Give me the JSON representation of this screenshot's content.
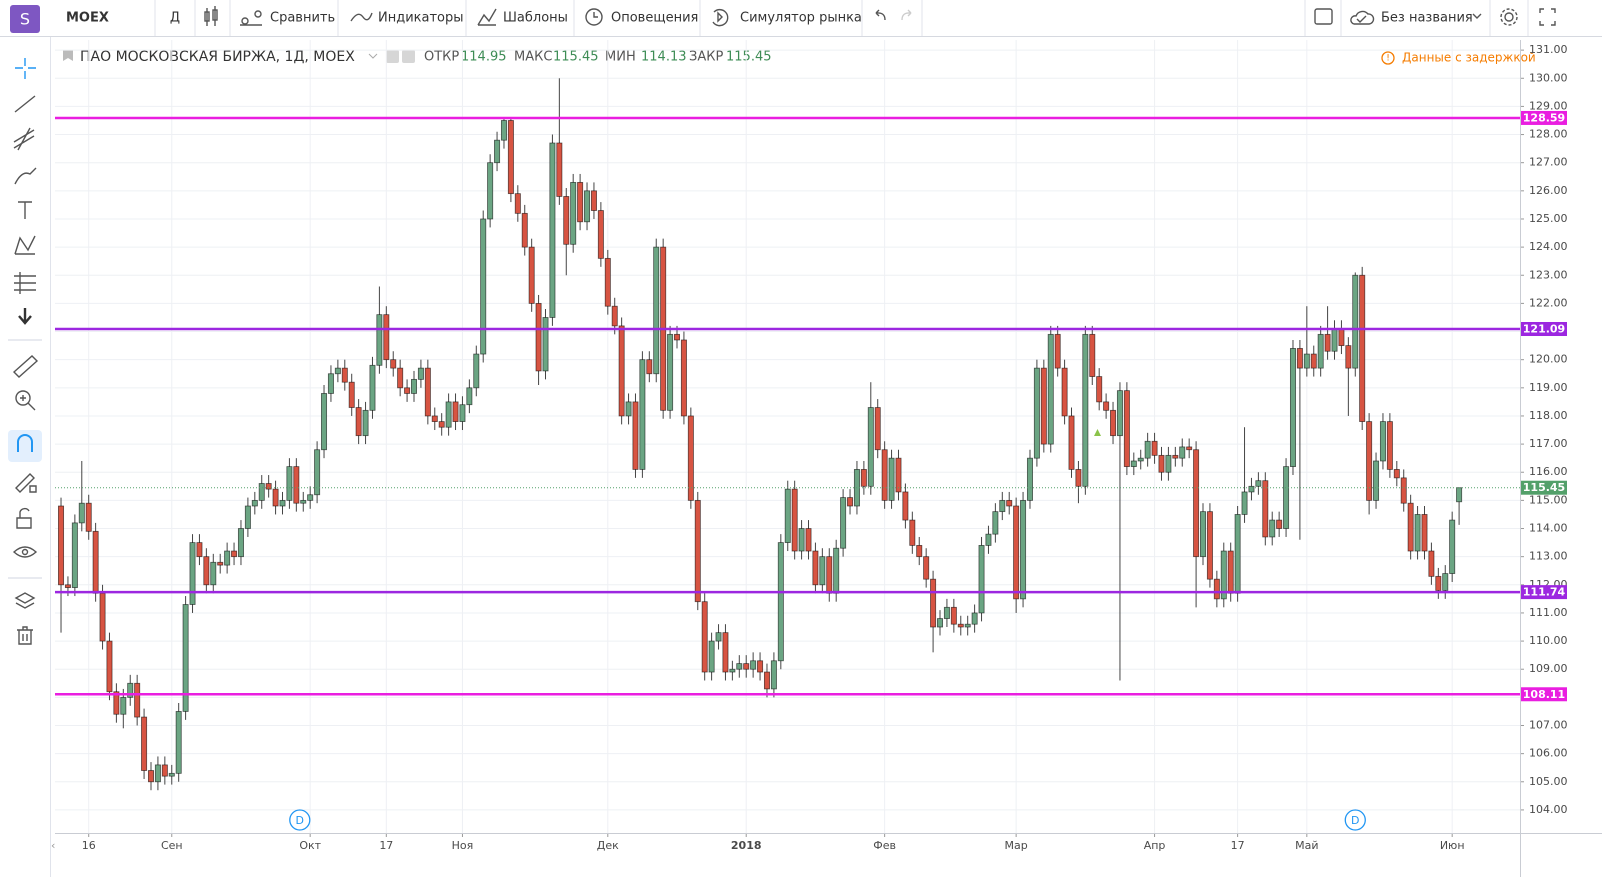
{
  "toolbar": {
    "logo": "S",
    "symbol": "MOEX",
    "interval": "Д",
    "compare": "Сравнить",
    "indicators": "Индикаторы",
    "templates": "Шаблоны",
    "alerts": "Оповещения",
    "replay": "Симулятор рынка",
    "layout": "Без названия"
  },
  "chart_data": {
    "type": "candlestick",
    "title": "ПАО МОСКОВСКАЯ БИРЖА, 1Д, MOEX",
    "legend": {
      "open": "ОТКР",
      "high": "МАКС",
      "low": "МИН",
      "close": "ЗАКР"
    },
    "notice": "Данные с задержкой",
    "up_color": "#6ba583",
    "down_color": "#d75442",
    "open": [
      114.8,
      112.0,
      111.9,
      114.2,
      114.9,
      113.9,
      111.7,
      110.0,
      108.2,
      107.4,
      108.0,
      108.5,
      107.3,
      105.4,
      105.0,
      105.6,
      105.2,
      105.3,
      107.5,
      111.3,
      113.5,
      113.0,
      112.0,
      112.8,
      112.7,
      113.2,
      113.0,
      114.0,
      114.8,
      115.0,
      115.6,
      115.4,
      114.8,
      115.0,
      116.2,
      114.9,
      115.0,
      115.2,
      116.8,
      118.8,
      119.5,
      119.7,
      119.2,
      118.3,
      117.3,
      118.2,
      119.8,
      121.6,
      120.0,
      119.7,
      119.0,
      118.8,
      119.3,
      119.7,
      118.0,
      117.8,
      117.6,
      118.5,
      117.8,
      118.4,
      119.0,
      120.2,
      125.0,
      127.0,
      127.8,
      128.5,
      125.9,
      125.2,
      124.0,
      122.0,
      119.6,
      121.5,
      127.7,
      125.8,
      124.1,
      126.3,
      124.9,
      126.0,
      125.3,
      123.6,
      121.9,
      121.2,
      118.0,
      118.5,
      116.1,
      120.0,
      119.5,
      124.0,
      118.2,
      120.9,
      120.7,
      118.0,
      115.0,
      111.4,
      108.9,
      110.0,
      110.3,
      108.9,
      109.0,
      109.2,
      109.0,
      109.3,
      108.9,
      108.3,
      109.3,
      113.5,
      115.4,
      113.2,
      114.0,
      113.2,
      112.0,
      113.0,
      111.7,
      113.3,
      115.1,
      114.8,
      116.1,
      115.5,
      118.3,
      116.8,
      115.0,
      116.5,
      115.3,
      114.3,
      113.4,
      113.0,
      112.2,
      110.5,
      110.8,
      111.2,
      110.6,
      110.5,
      110.6,
      111.0,
      113.4,
      113.8,
      114.6,
      115.0,
      114.8,
      111.5,
      115.0,
      116.5,
      119.7,
      117.0,
      120.9,
      119.7,
      118.0,
      116.1,
      115.5,
      120.9,
      119.4,
      118.5,
      118.2,
      117.3,
      118.9,
      116.2,
      116.4,
      116.5,
      117.1,
      116.6,
      116.0,
      116.6,
      116.5,
      116.9,
      116.8,
      113.0,
      114.6,
      112.2,
      111.5,
      113.2,
      111.7,
      114.5,
      115.3,
      115.5,
      115.7,
      113.7,
      114.3,
      114.0,
      116.2,
      120.4,
      119.7,
      120.2,
      119.7,
      120.9,
      120.3,
      121.1,
      120.5,
      119.7,
      123.0,
      117.8,
      115.0,
      116.4,
      117.8,
      116.1,
      115.8,
      114.9,
      113.2,
      114.5,
      113.2,
      112.3,
      111.8,
      112.4,
      114.95
    ],
    "high": [
      115.1,
      112.3,
      114.5,
      116.4,
      115.2,
      114.2,
      112.0,
      110.3,
      108.5,
      108.3,
      108.8,
      108.8,
      107.6,
      105.7,
      105.9,
      105.9,
      105.6,
      107.8,
      111.6,
      113.8,
      113.8,
      113.3,
      113.1,
      113.1,
      113.5,
      113.5,
      114.3,
      115.1,
      115.3,
      115.9,
      115.9,
      115.7,
      115.3,
      116.5,
      116.5,
      115.3,
      115.5,
      117.1,
      119.1,
      119.8,
      120.0,
      120.0,
      119.5,
      118.6,
      118.5,
      120.1,
      122.6,
      121.9,
      120.3,
      120.0,
      119.3,
      119.6,
      120.0,
      120.0,
      118.3,
      118.1,
      118.8,
      118.8,
      118.7,
      119.3,
      120.5,
      125.3,
      127.3,
      128.1,
      128.6,
      128.6,
      126.2,
      125.5,
      124.3,
      122.3,
      121.8,
      128.0,
      130.0,
      126.1,
      126.6,
      126.6,
      126.3,
      126.3,
      125.6,
      123.9,
      122.2,
      121.5,
      118.8,
      118.8,
      120.3,
      120.3,
      124.3,
      124.3,
      121.2,
      121.2,
      121.0,
      118.3,
      115.3,
      111.7,
      110.3,
      110.6,
      110.6,
      109.3,
      109.5,
      109.5,
      109.6,
      109.6,
      109.2,
      109.6,
      113.8,
      115.7,
      115.7,
      114.3,
      114.3,
      113.5,
      113.3,
      113.3,
      113.6,
      115.4,
      115.4,
      116.4,
      116.4,
      119.2,
      118.6,
      117.1,
      116.8,
      116.8,
      115.6,
      114.6,
      113.7,
      113.3,
      112.5,
      111.1,
      111.5,
      111.5,
      110.9,
      110.9,
      111.3,
      113.7,
      114.1,
      114.9,
      115.3,
      115.3,
      115.1,
      115.3,
      116.8,
      120.0,
      120.0,
      121.2,
      121.2,
      120.0,
      118.3,
      116.4,
      121.2,
      121.2,
      119.7,
      118.8,
      118.5,
      119.2,
      119.2,
      116.7,
      116.8,
      117.4,
      117.4,
      116.9,
      116.9,
      116.9,
      117.2,
      117.2,
      117.1,
      114.9,
      114.9,
      112.5,
      113.5,
      113.5,
      114.8,
      117.6,
      115.8,
      116.0,
      116.0,
      114.6,
      114.6,
      116.5,
      120.7,
      120.7,
      121.9,
      120.5,
      121.2,
      121.9,
      121.4,
      121.4,
      120.8,
      123.1,
      123.3,
      118.1,
      116.7,
      118.1,
      118.1,
      116.4,
      116.1,
      115.2,
      114.8,
      114.8,
      113.5,
      112.6,
      112.7,
      114.6,
      115.45
    ],
    "low": [
      110.3,
      111.6,
      111.6,
      113.9,
      113.6,
      111.4,
      109.7,
      107.9,
      107.1,
      106.9,
      107.7,
      107.0,
      105.1,
      104.7,
      104.7,
      104.9,
      104.9,
      105.0,
      107.2,
      111.0,
      112.7,
      111.7,
      111.7,
      112.4,
      112.4,
      112.7,
      112.7,
      113.7,
      114.5,
      114.7,
      115.1,
      114.5,
      114.5,
      114.7,
      114.6,
      114.6,
      114.7,
      114.9,
      116.5,
      118.5,
      119.2,
      118.9,
      118.0,
      117.0,
      117.0,
      117.9,
      119.5,
      119.7,
      119.4,
      118.7,
      118.5,
      118.5,
      119.0,
      117.7,
      117.5,
      117.3,
      117.3,
      117.5,
      117.5,
      118.1,
      118.7,
      119.9,
      124.7,
      126.7,
      127.5,
      125.6,
      124.9,
      123.7,
      121.7,
      119.1,
      119.3,
      121.2,
      125.5,
      123.0,
      123.8,
      124.6,
      124.6,
      125.0,
      123.3,
      121.6,
      120.9,
      117.7,
      117.7,
      115.8,
      115.8,
      119.2,
      119.2,
      117.9,
      117.9,
      120.4,
      117.7,
      114.7,
      111.1,
      108.6,
      108.6,
      109.7,
      108.6,
      108.6,
      108.7,
      108.7,
      108.7,
      108.6,
      108.0,
      108.0,
      109.0,
      113.2,
      112.9,
      112.9,
      112.9,
      111.7,
      111.7,
      111.4,
      111.4,
      113.0,
      114.5,
      114.5,
      115.2,
      115.2,
      116.5,
      114.7,
      114.7,
      115.0,
      114.0,
      113.1,
      112.7,
      111.9,
      109.6,
      110.2,
      110.5,
      110.3,
      110.2,
      110.2,
      110.3,
      110.7,
      113.1,
      113.5,
      114.3,
      114.5,
      111.0,
      111.2,
      114.7,
      116.2,
      116.7,
      116.7,
      119.4,
      117.7,
      115.8,
      114.9,
      115.2,
      119.1,
      118.2,
      117.9,
      117.0,
      108.6,
      115.9,
      115.9,
      116.1,
      116.2,
      116.3,
      115.7,
      115.7,
      116.2,
      116.2,
      116.5,
      111.2,
      112.7,
      111.9,
      111.2,
      111.2,
      111.4,
      111.4,
      114.2,
      115.0,
      115.2,
      113.4,
      113.4,
      113.7,
      113.7,
      115.9,
      113.6,
      119.4,
      119.4,
      119.4,
      120.0,
      120.0,
      120.2,
      118.0,
      119.4,
      117.5,
      114.5,
      114.7,
      116.1,
      115.8,
      115.5,
      114.6,
      112.9,
      112.9,
      112.9,
      112.0,
      111.5,
      111.5,
      112.1,
      114.13
    ],
    "close": [
      112.0,
      111.9,
      114.2,
      114.9,
      113.9,
      111.7,
      110.0,
      108.2,
      107.4,
      108.0,
      108.5,
      107.3,
      105.4,
      105.0,
      105.6,
      105.2,
      105.3,
      107.5,
      111.3,
      113.5,
      113.0,
      112.0,
      112.8,
      112.7,
      113.2,
      113.0,
      114.0,
      114.8,
      115.0,
      115.6,
      115.4,
      114.8,
      115.0,
      116.2,
      114.9,
      115.0,
      115.2,
      116.8,
      118.8,
      119.5,
      119.7,
      119.2,
      118.3,
      117.3,
      118.2,
      119.8,
      121.6,
      120.0,
      119.7,
      119.0,
      118.8,
      119.3,
      119.7,
      118.0,
      117.8,
      117.6,
      118.5,
      117.8,
      118.4,
      119.0,
      120.2,
      125.0,
      127.0,
      127.8,
      128.5,
      125.9,
      125.2,
      124.0,
      122.0,
      119.6,
      121.5,
      127.7,
      125.8,
      124.1,
      126.3,
      124.9,
      126.0,
      125.3,
      123.6,
      121.9,
      121.2,
      118.0,
      118.5,
      116.1,
      120.0,
      119.5,
      124.0,
      118.2,
      120.9,
      120.7,
      118.0,
      115.0,
      111.4,
      108.9,
      110.0,
      110.3,
      108.9,
      109.0,
      109.2,
      109.0,
      109.3,
      108.9,
      108.3,
      109.3,
      113.5,
      115.4,
      113.2,
      114.0,
      113.2,
      112.0,
      113.0,
      111.7,
      113.3,
      115.1,
      114.8,
      116.1,
      115.5,
      118.3,
      116.8,
      115.0,
      116.5,
      115.3,
      114.3,
      113.4,
      113.0,
      112.2,
      110.5,
      110.8,
      111.2,
      110.6,
      110.5,
      110.6,
      111.0,
      113.4,
      113.8,
      114.6,
      115.0,
      114.8,
      111.5,
      115.0,
      116.5,
      119.7,
      117.0,
      120.9,
      119.7,
      118.0,
      116.1,
      115.5,
      120.9,
      119.4,
      118.5,
      118.2,
      117.3,
      118.9,
      116.2,
      116.4,
      116.5,
      117.1,
      116.6,
      116.0,
      116.6,
      116.5,
      116.9,
      116.8,
      113.0,
      114.6,
      112.2,
      111.5,
      113.2,
      111.7,
      114.5,
      115.3,
      115.5,
      115.7,
      113.7,
      114.3,
      114.0,
      116.2,
      120.4,
      119.7,
      120.2,
      119.7,
      120.9,
      120.3,
      121.1,
      120.5,
      119.7,
      123.0,
      117.8,
      115.0,
      116.4,
      117.8,
      116.1,
      115.8,
      114.9,
      113.2,
      114.5,
      113.2,
      112.3,
      111.8,
      112.4,
      114.3,
      115.45
    ],
    "last_color": "#53a06a",
    "xlim": [
      -0.87,
      210.8
    ],
    "xticks": [
      {
        "value": 4,
        "label": "16"
      },
      {
        "value": 16,
        "label": "Сен"
      },
      {
        "value": 36,
        "label": "Окт"
      },
      {
        "value": 47,
        "label": "17"
      },
      {
        "value": 58,
        "label": "Ноя"
      },
      {
        "value": 79,
        "label": "Дек"
      },
      {
        "value": 99,
        "label": "2018"
      },
      {
        "value": 119,
        "label": "Фев"
      },
      {
        "value": 138,
        "label": "Мар"
      },
      {
        "value": 158,
        "label": "Апр"
      },
      {
        "value": 170,
        "label": "17"
      },
      {
        "value": 180,
        "label": "Май"
      },
      {
        "value": 201,
        "label": "Июн"
      }
    ],
    "ylim": [
      103.18,
      131.36
    ],
    "yticks": [
      {
        "value": 104,
        "label": "104.00"
      },
      {
        "value": 105,
        "label": "105.00"
      },
      {
        "value": 106,
        "label": "106.00"
      },
      {
        "value": 107,
        "label": "107.00"
      },
      {
        "value": 108,
        "label": "108.00"
      },
      {
        "value": 109,
        "label": "109.00"
      },
      {
        "value": 110,
        "label": "110.00"
      },
      {
        "value": 111,
        "label": "111.00"
      },
      {
        "value": 112,
        "label": "112.00"
      },
      {
        "value": 113,
        "label": "113.00"
      },
      {
        "value": 114,
        "label": "114.00"
      },
      {
        "value": 115,
        "label": "115.00"
      },
      {
        "value": 116,
        "label": "116.00"
      },
      {
        "value": 117,
        "label": "117.00"
      },
      {
        "value": 118,
        "label": "118.00"
      },
      {
        "value": 119,
        "label": "119.00"
      },
      {
        "value": 120,
        "label": "120.00"
      },
      {
        "value": 121,
        "label": "121.00"
      },
      {
        "value": 122,
        "label": "122.00"
      },
      {
        "value": 123,
        "label": "123.00"
      },
      {
        "value": 124,
        "label": "124.00"
      },
      {
        "value": 125,
        "label": "125.00"
      },
      {
        "value": 126,
        "label": "126.00"
      },
      {
        "value": 127,
        "label": "127.00"
      },
      {
        "value": 128,
        "label": "128.00"
      },
      {
        "value": 129,
        "label": "129.00"
      },
      {
        "value": 130,
        "label": "130.00"
      },
      {
        "value": 131,
        "label": "131.00"
      }
    ],
    "grid": true,
    "levels": [
      {
        "value": 128.59,
        "color": "#e91ee0"
      },
      {
        "value": 121.09,
        "color": "#9c27e0"
      },
      {
        "value": 111.74,
        "color": "#9c27e0"
      },
      {
        "value": 108.11,
        "color": "#e91ee0"
      }
    ],
    "events": [
      {
        "x": 34.5,
        "label": "D"
      },
      {
        "x": 187,
        "label": "D"
      }
    ]
  }
}
